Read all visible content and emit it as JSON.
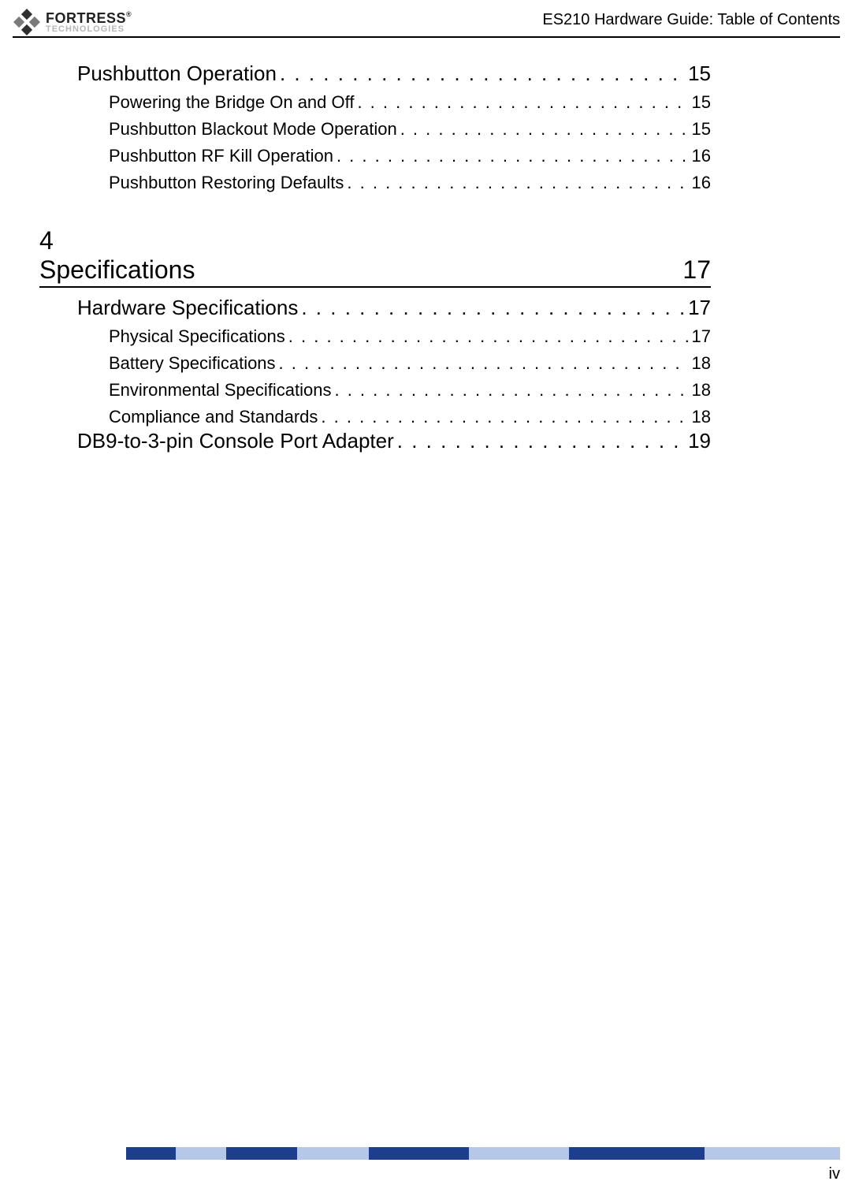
{
  "header": {
    "doc_title": "ES210 Hardware Guide: Table of Contents",
    "logo_line1": "FORTRESS",
    "logo_line2": "TECHNOLOGIES",
    "logo_reg": "®"
  },
  "toc": {
    "section_a": {
      "title": "Pushbutton Operation",
      "page": "15",
      "items": [
        {
          "label": "Powering the Bridge On and Off",
          "page": "15"
        },
        {
          "label": "Pushbutton Blackout Mode Operation",
          "page": "15"
        },
        {
          "label": "Pushbutton RF Kill Operation",
          "page": "16"
        },
        {
          "label": "Pushbutton Restoring Defaults",
          "page": "16"
        }
      ]
    },
    "chapter": {
      "number": "4",
      "title": "Specifications",
      "page": "17"
    },
    "section_b": {
      "title": "Hardware Specifications",
      "page": "17",
      "items": [
        {
          "label": "Physical Specifications",
          "page": "17"
        },
        {
          "label": "Battery Specifications",
          "page": "18"
        },
        {
          "label": "Environmental Specifications",
          "page": "18"
        },
        {
          "label": "Compliance and Standards",
          "page": "18"
        }
      ]
    },
    "section_c": {
      "title": "DB9-to-3-pin Console Port Adapter",
      "page": "19"
    }
  },
  "footer": {
    "page_number": "iv",
    "segments": [
      {
        "color": "#1c3e8c",
        "width_pct": 7
      },
      {
        "color": "#b6c7e8",
        "width_pct": 7
      },
      {
        "color": "#1c3e8c",
        "width_pct": 10
      },
      {
        "color": "#b6c7e8",
        "width_pct": 10
      },
      {
        "color": "#1c3e8c",
        "width_pct": 14
      },
      {
        "color": "#b6c7e8",
        "width_pct": 14
      },
      {
        "color": "#1c3e8c",
        "width_pct": 19
      },
      {
        "color": "#b6c7e8",
        "width_pct": 19
      }
    ]
  },
  "style": {
    "text_color": "#000000",
    "bg_color": "#ffffff",
    "l1_fontsize": 26,
    "l2_fontsize": 22,
    "chapter_fontsize": 32,
    "header_fontsize": 20,
    "pagenum_fontsize": 20
  }
}
